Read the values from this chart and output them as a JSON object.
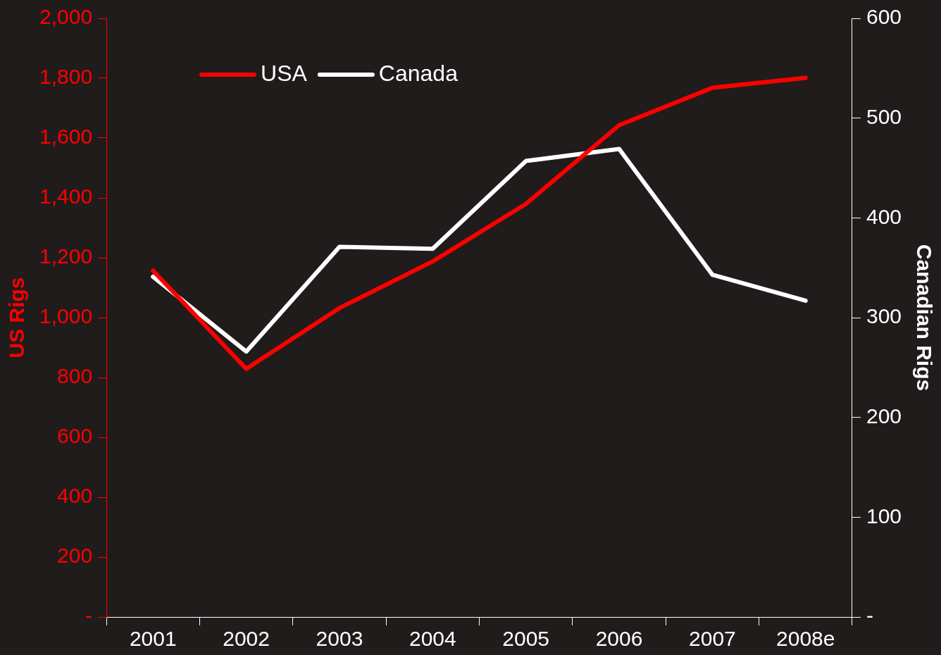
{
  "chart_data": {
    "type": "line",
    "categories": [
      "2001",
      "2002",
      "2003",
      "2004",
      "2005",
      "2006",
      "2007",
      "2008e"
    ],
    "series": [
      {
        "name": "USA",
        "color": "#ff0000",
        "values": [
          1157,
          829,
          1032,
          1188,
          1380,
          1643,
          1768,
          1801
        ]
      },
      {
        "name": "Canada",
        "color": "#ffffff",
        "axis": "y2",
        "values": [
          341,
          266,
          371,
          369,
          457,
          469,
          343,
          317
        ]
      }
    ],
    "ylabel": "US Rigs",
    "y2label": "Canadian Rigs",
    "ylim": [
      0,
      2000
    ],
    "yticks": [
      {
        "value": 0,
        "label": "-"
      },
      {
        "value": 200,
        "label": "200"
      },
      {
        "value": 400,
        "label": "400"
      },
      {
        "value": 600,
        "label": "600"
      },
      {
        "value": 800,
        "label": "800"
      },
      {
        "value": 1000,
        "label": "1,000"
      },
      {
        "value": 1200,
        "label": "1,200"
      },
      {
        "value": 1400,
        "label": "1,400"
      },
      {
        "value": 1600,
        "label": "1,600"
      },
      {
        "value": 1800,
        "label": "1,800"
      },
      {
        "value": 2000,
        "label": "2,000"
      }
    ],
    "y2lim": [
      0,
      600
    ],
    "y2ticks": [
      {
        "value": 0,
        "label": "-"
      },
      100,
      200,
      300,
      400,
      500,
      600
    ],
    "legend": "top left",
    "grid": false,
    "marker": "none",
    "line_style": "solid"
  }
}
